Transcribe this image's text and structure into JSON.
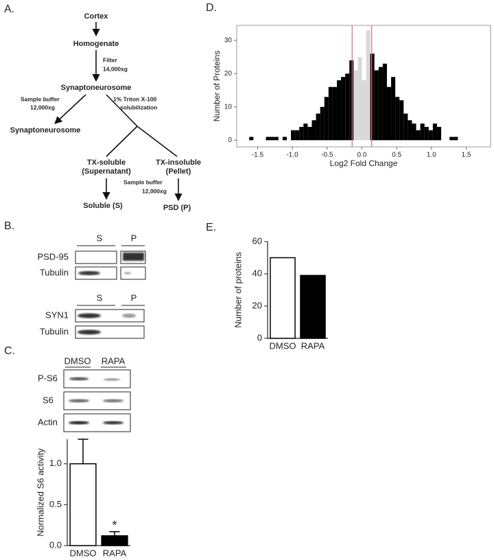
{
  "panel_labels": [
    "A.",
    "B.",
    "C.",
    "D.",
    "E."
  ],
  "diagram": {
    "nodes": [
      "Cortex",
      "Homogenate",
      "Synaptoneurosome",
      "Synaptoneurosome",
      "TX-soluble",
      "(Supernatant)",
      "TX-insoluble",
      "(Pellet)",
      "Soluble (S)",
      "PSD (P)"
    ],
    "edge_labels": [
      "Filter",
      "14,000xg",
      "Sample buffer",
      "12,000xg",
      "1% Triton X-100",
      "solubilization",
      "Sample buffer",
      "12,000xg"
    ]
  },
  "blot_b1": {
    "lanes": [
      "S",
      "P"
    ],
    "rows": [
      "PSD-95",
      "Tubulin"
    ]
  },
  "blot_b2": {
    "lanes": [
      "S",
      "P"
    ],
    "rows": [
      "SYN1",
      "Tubulin"
    ]
  },
  "blot_c": {
    "lanes": [
      "DMSO",
      "RAPA"
    ],
    "rows": [
      "P-S6",
      "S6",
      "Actin"
    ]
  },
  "chart_data": [
    {
      "type": "bar",
      "categories": [
        "DMSO",
        "RAPA"
      ],
      "values": [
        1.0,
        0.12
      ],
      "errors": [
        0.3,
        0.05
      ],
      "colors": [
        "#ffffff",
        "#000000"
      ],
      "ylabel": "Normalized S6 activity",
      "ylim": [
        0,
        1.3
      ],
      "yticks": [
        {
          "value": 0,
          "label": "0.0"
        },
        0.5,
        {
          "value": 1,
          "label": "1.0"
        }
      ],
      "annotations": [
        {
          "text": "*",
          "category": "RAPA"
        }
      ]
    },
    {
      "type": "histogram",
      "bins": [
        -1.68,
        -1.62,
        -1.56,
        -1.5,
        -1.44,
        -1.38,
        -1.32,
        -1.26,
        -1.2,
        -1.14,
        -1.08,
        -1.02,
        -0.96,
        -0.9,
        -0.84,
        -0.78,
        -0.72,
        -0.66,
        -0.6,
        -0.54,
        -0.48,
        -0.42,
        -0.36,
        -0.3,
        -0.24,
        -0.18,
        -0.12,
        -0.06,
        0,
        0.06,
        0.12,
        0.18,
        0.24,
        0.3,
        0.36,
        0.42,
        0.48,
        0.54,
        0.6,
        0.66,
        0.72,
        0.78,
        0.84,
        0.9,
        0.96,
        1.02,
        1.08,
        1.14,
        1.2,
        1.26,
        1.32,
        1.38
      ],
      "counts": [
        0,
        1,
        0,
        0,
        0,
        1,
        1,
        1,
        0,
        1,
        0,
        3,
        3,
        4,
        5,
        4,
        6,
        8,
        10,
        13,
        16,
        16,
        18,
        19,
        20,
        24,
        21,
        25,
        18,
        33,
        26,
        21,
        22,
        23,
        16,
        19,
        13,
        12,
        8,
        6,
        5,
        3,
        5,
        4,
        3,
        5,
        4,
        0,
        0,
        1,
        1
      ],
      "color": "#000000",
      "highlight_color": "#d9d9d9",
      "highlight_line_color": "#e8746c",
      "highlight_range": [
        -0.14,
        0.14
      ],
      "xlabel": "Log2 Fold Change",
      "ylabel": "Number of Proteins",
      "xlim": [
        -1.8,
        1.85
      ],
      "ylim": [
        -2,
        34.5
      ],
      "xticks": [
        -1.5,
        {
          "value": -1,
          "label": "-1.0"
        },
        -0.5,
        {
          "value": 0,
          "label": "0.0"
        },
        0.5,
        {
          "value": 1,
          "label": "1.0"
        },
        1.5
      ],
      "yticks": [
        0,
        10,
        20,
        30
      ]
    },
    {
      "type": "bar",
      "categories": [
        "DMSO",
        "RAPA"
      ],
      "values": [
        50,
        39
      ],
      "colors": [
        "#ffffff",
        "#000000"
      ],
      "ylabel": "Number of proteins",
      "ylim": [
        0,
        60
      ],
      "yticks": [
        0,
        20,
        40,
        60
      ]
    }
  ]
}
